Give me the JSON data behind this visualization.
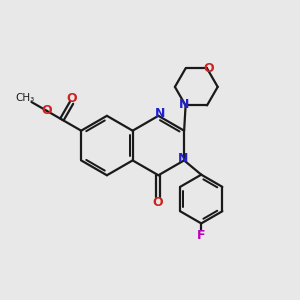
{
  "bg_color": "#e8e8e8",
  "bond_color": "#1a1a1a",
  "N_color": "#2222cc",
  "O_color": "#cc2222",
  "F_color": "#bb00bb",
  "lw": 1.6,
  "figsize": [
    3.0,
    3.0
  ],
  "dpi": 100,
  "xlim": [
    0,
    10
  ],
  "ylim": [
    0,
    10
  ]
}
